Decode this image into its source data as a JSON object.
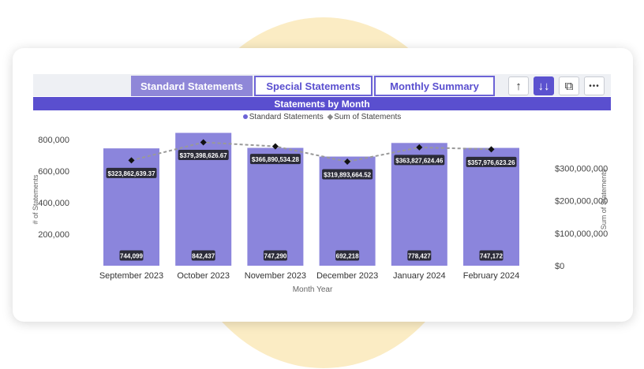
{
  "tabs": [
    {
      "label": "Standard Statements",
      "active": true
    },
    {
      "label": "Special Statements",
      "active": false
    },
    {
      "label": "Monthly Summary",
      "active": false
    }
  ],
  "toolbar": [
    {
      "icon": "arrow-up-icon",
      "glyph": "↑",
      "active": false
    },
    {
      "icon": "double-arrow-down-icon",
      "glyph": "↓↓",
      "active": true
    },
    {
      "icon": "copy-icon",
      "glyph": "⧉",
      "active": false
    },
    {
      "icon": "more-icon",
      "glyph": "•••",
      "active": false
    }
  ],
  "chart_title": "Statements by Month",
  "legend": {
    "series1": "Standard Statements",
    "series2": "Sum of Statements"
  },
  "colors": {
    "bar": "#8b85dc",
    "line": "#999999",
    "accent": "#5a4fcf",
    "label_bg": "#2b2b38"
  },
  "chart_data": {
    "type": "bar",
    "title": "Statements by Month",
    "xlabel": "Month Year",
    "ylabel": "# of Statements",
    "y2label": "Sum of Statements",
    "categories": [
      "September 2023",
      "October 2023",
      "November 2023",
      "December 2023",
      "January 2024",
      "February 2024"
    ],
    "ylim": [
      0,
      900000
    ],
    "y_ticks": [
      200000,
      400000,
      600000,
      800000
    ],
    "y_tick_labels": [
      "200,000",
      "400,000",
      "600,000",
      "800,000"
    ],
    "y2lim": [
      0,
      400000000
    ],
    "y2_ticks": [
      0,
      100000000,
      200000000,
      300000000
    ],
    "y2_tick_labels": [
      "$0",
      "$100,000,000",
      "$200,000,000",
      "$300,000,000"
    ],
    "series": [
      {
        "name": "Standard Statements",
        "kind": "bar",
        "axis": "left",
        "values": [
          744099,
          842437,
          747290,
          692218,
          778427,
          747172
        ],
        "labels": [
          "744,099",
          "842,437",
          "747,290",
          "692,218",
          "778,427",
          "747,172"
        ]
      },
      {
        "name": "Sum of Statements",
        "kind": "line",
        "axis": "right",
        "values": [
          323862639.37,
          379398626.67,
          366890534.28,
          319893664.52,
          363827624.46,
          357976623.26
        ],
        "labels": [
          "$323,862,639.37",
          "$379,398,626.67",
          "$366,890,534.28",
          "$319,893,664.52",
          "$363,827,624.46",
          "$357,976,623.26"
        ]
      }
    ]
  }
}
